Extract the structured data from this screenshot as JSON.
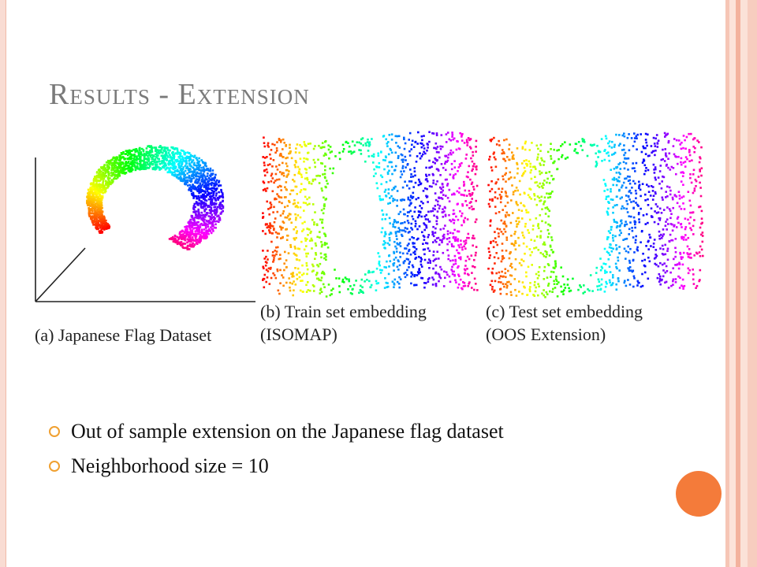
{
  "slide": {
    "title": "Results - Extension",
    "bullets": [
      "Out of sample extension on the Japanese flag dataset",
      "Neighborhood size = 10"
    ]
  },
  "figures": {
    "a": {
      "caption_line1": "(a) Japanese Flag Dataset"
    },
    "b": {
      "caption_line1": "(b) Train set embedding",
      "caption_line2": "(ISOMAP)"
    },
    "c": {
      "caption_line1": "(c) Test set embedding",
      "caption_line2": "(OOS Extension)"
    }
  },
  "colors": {
    "title": "#7a7a7a",
    "bullet_ring": "#f0a030",
    "accent_circle": "#f47b3a",
    "frame": "#f6c6b6"
  }
}
